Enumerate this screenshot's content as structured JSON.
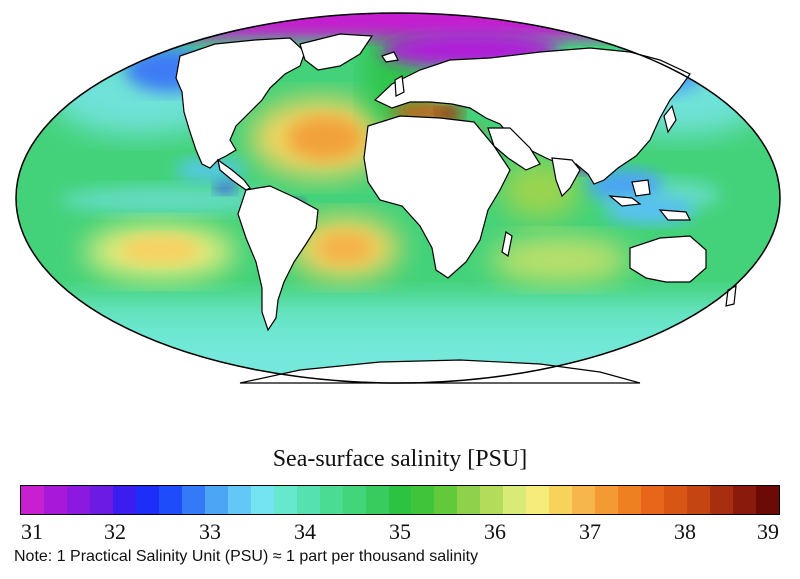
{
  "title": "Sea-surface salinity [PSU]",
  "note": "Note: 1 Practical Salinity Unit (PSU) ≈ 1 part per thousand salinity",
  "colorbar": {
    "min": 31,
    "max": 39,
    "ticks": [
      "31",
      "32",
      "33",
      "34",
      "35",
      "36",
      "37",
      "38",
      "39"
    ],
    "colors": [
      "#c820d0",
      "#a718d8",
      "#8c19df",
      "#6b1be2",
      "#3b1df0",
      "#1c2ef7",
      "#1e4cfb",
      "#3479f8",
      "#4da5f5",
      "#63c8f6",
      "#74e4f2",
      "#66e8cc",
      "#56e2b0",
      "#4bdc94",
      "#42d57a",
      "#38cc5e",
      "#2bc33f",
      "#40c43a",
      "#62c93a",
      "#8ed14a",
      "#b3dc5a",
      "#d9ea76",
      "#f6ec7a",
      "#f8d35c",
      "#f7b64c",
      "#f39a32",
      "#ef8022",
      "#e8661a",
      "#d85614",
      "#c44412",
      "#a82e10",
      "#8a1a0c",
      "#6c0a06"
    ]
  },
  "chart_data": {
    "type": "heatmap",
    "title": "Sea-surface salinity [PSU]",
    "colorbar_range": [
      31,
      39
    ],
    "colorbar_ticks": [
      31,
      32,
      33,
      34,
      35,
      36,
      37,
      38,
      39
    ],
    "projection": "Mollweide"
  }
}
